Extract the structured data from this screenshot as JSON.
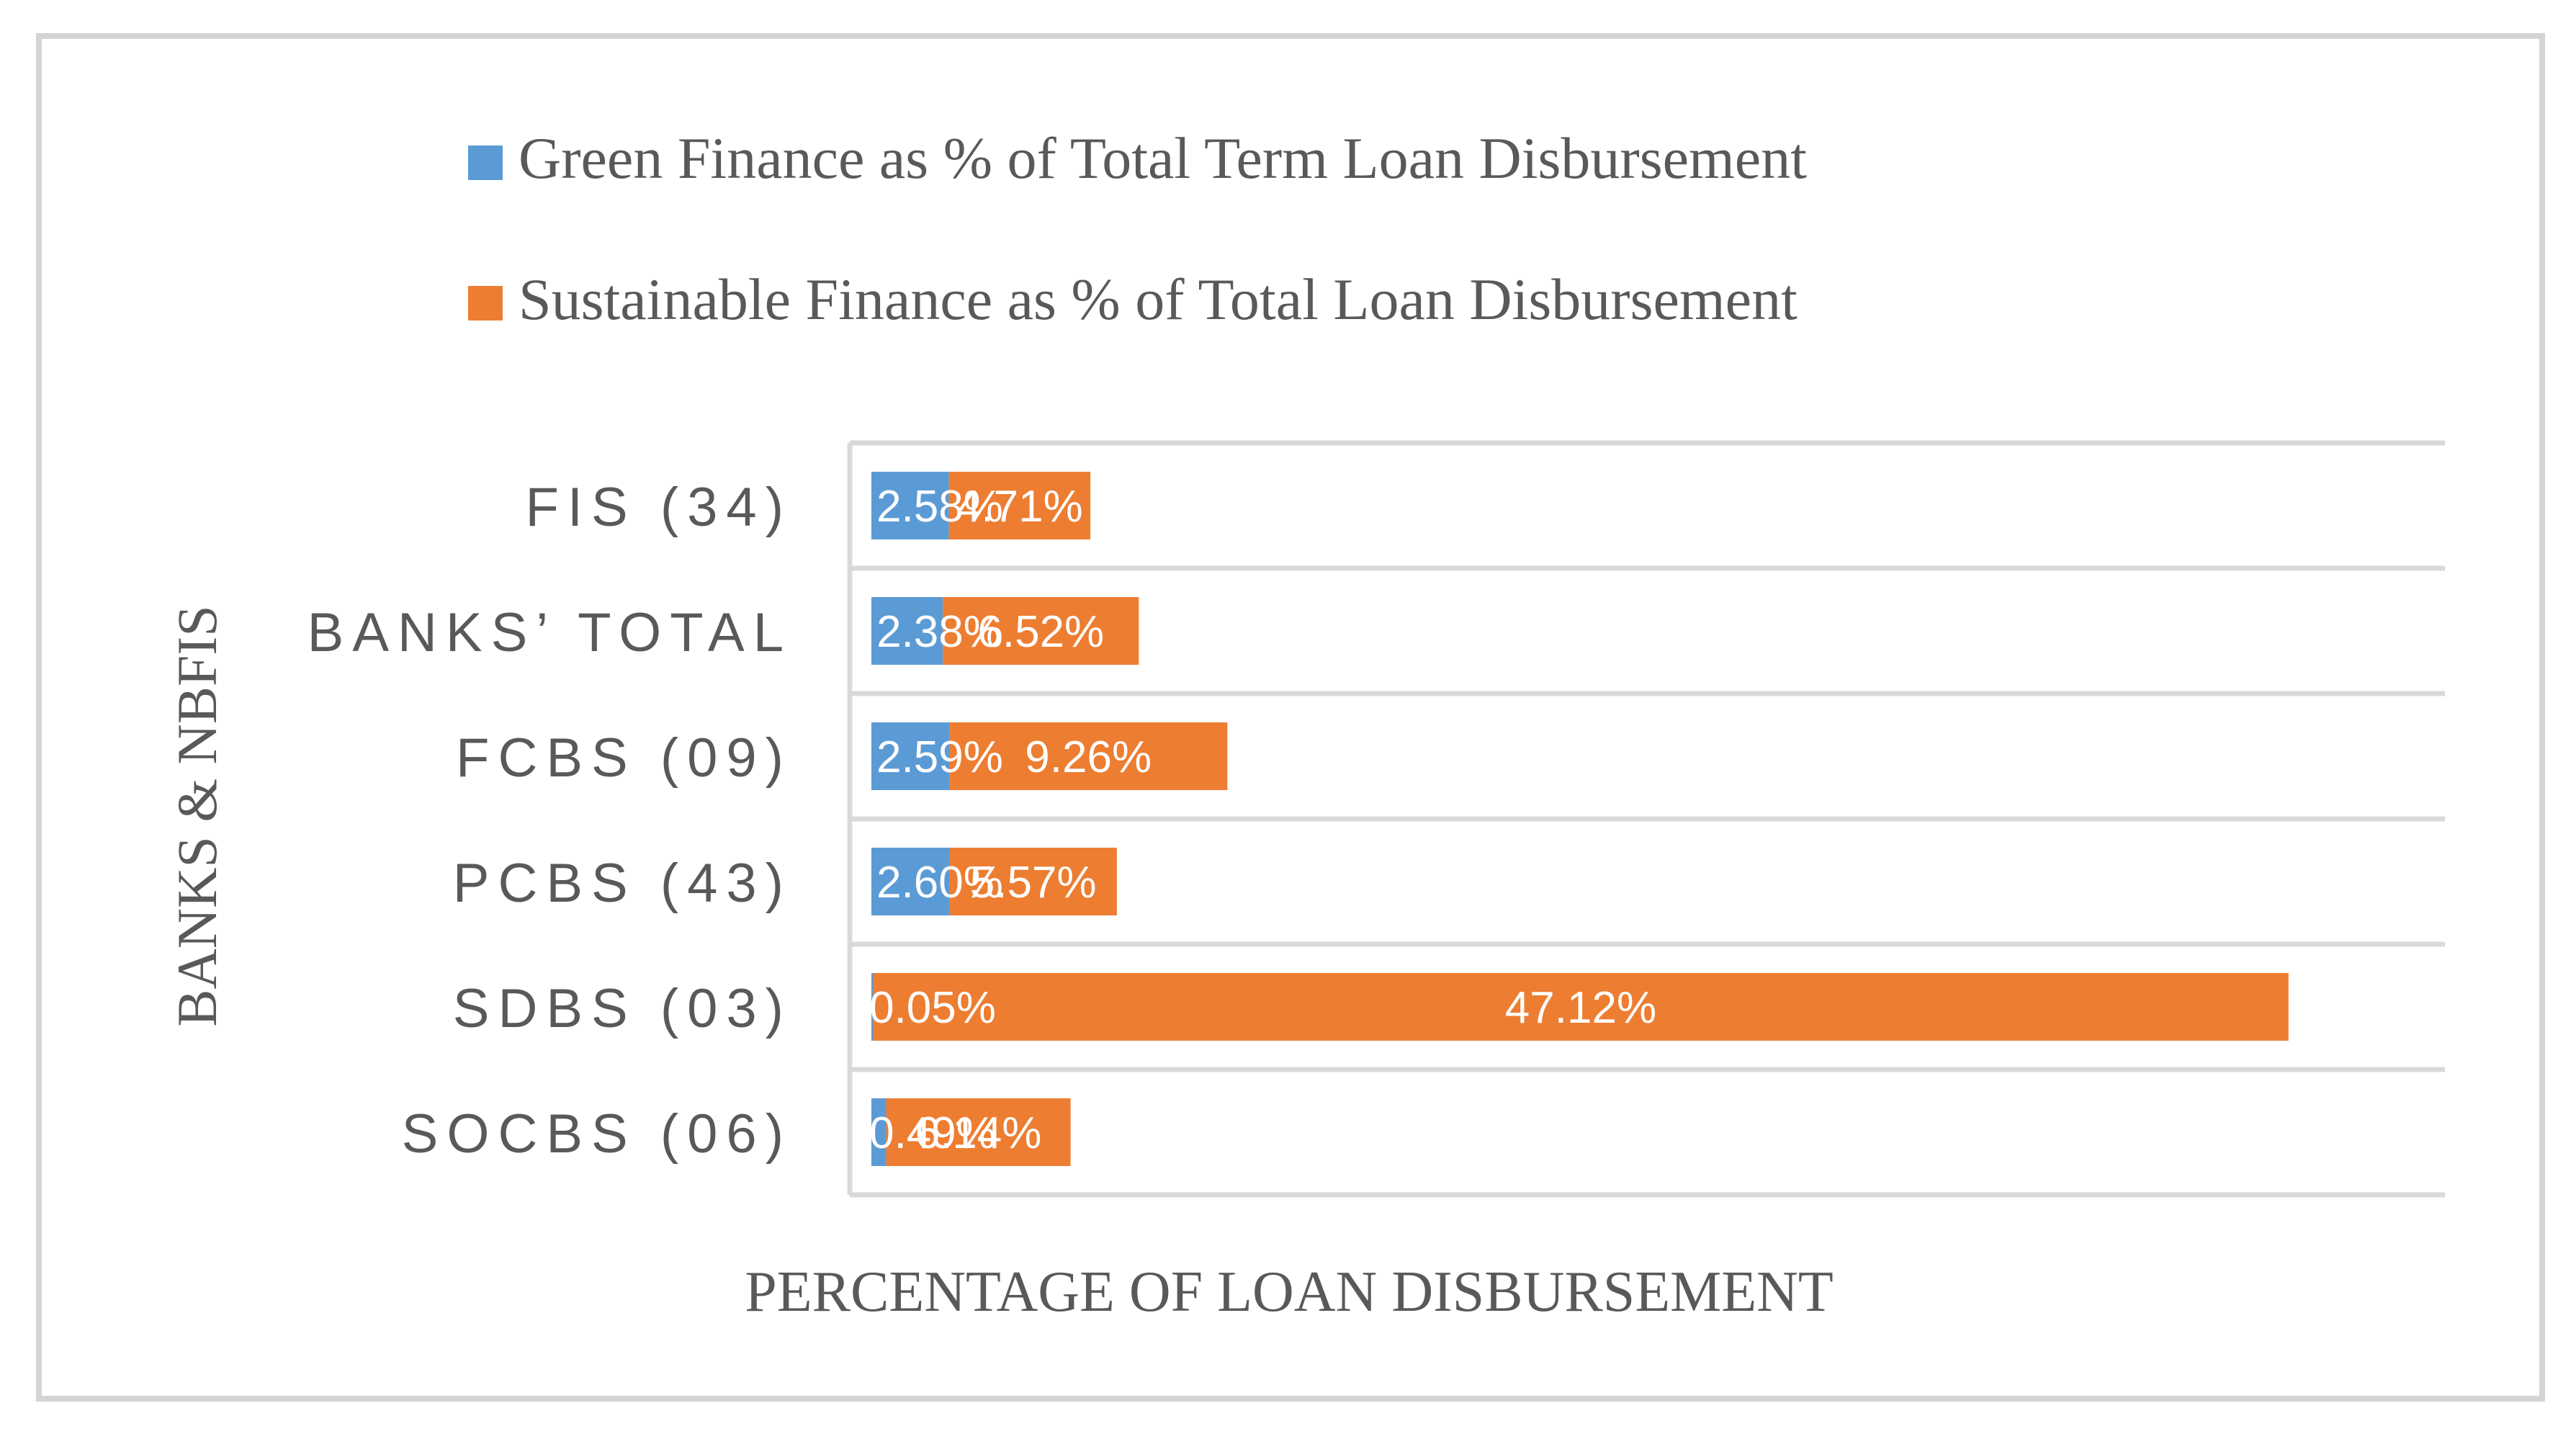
{
  "chart_data": {
    "type": "bar",
    "stacked": true,
    "orientation": "horizontal",
    "categories": [
      "FIS (34)",
      "BANKS’ TOTAL",
      "FCBS (09)",
      "PCBS (43)",
      "SDBS (03)",
      "SOCBS (06)"
    ],
    "series": [
      {
        "name": "Green Finance as % of Total Term Loan Disbursement",
        "color": "#5b9bd5",
        "values": [
          2.58,
          2.38,
          2.59,
          2.6,
          0.05,
          0.49
        ],
        "labels": [
          "2.58%",
          "2.38%",
          "2.59%",
          "2.60%",
          "0.05%",
          "0.49%"
        ]
      },
      {
        "name": "Sustainable Finance as % of Total Loan Disbursement",
        "color": "#ed7d31",
        "values": [
          4.71,
          6.52,
          9.26,
          5.57,
          47.12,
          6.14
        ],
        "labels": [
          "4.71%",
          "6.52%",
          "9.26%",
          "5.57%",
          "47.12%",
          "6.14%"
        ]
      }
    ],
    "xlabel": "PERCENTAGE OF LOAN DISBURSEMENT",
    "ylabel": "BANKS & NBFIS",
    "xlim": [
      0,
      51
    ],
    "grid": true,
    "legend_position": "top"
  }
}
